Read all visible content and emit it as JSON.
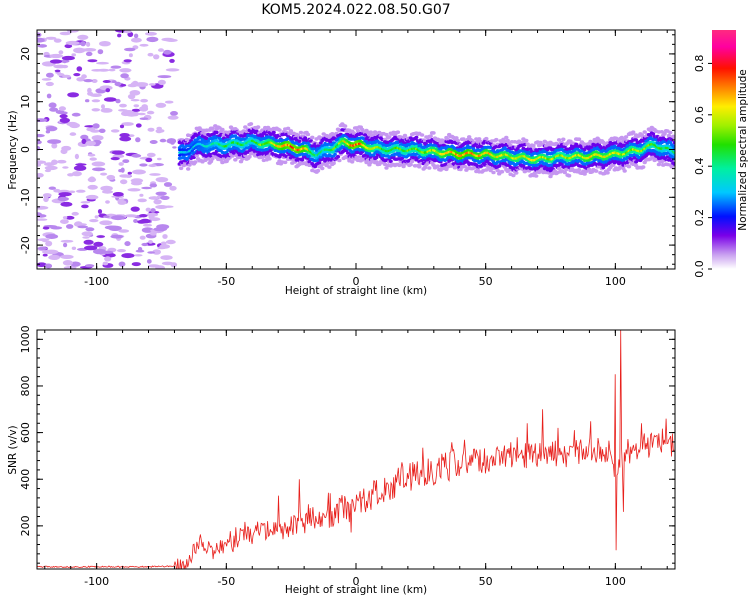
{
  "chart_data": [
    {
      "type": "heatmap",
      "title": "KOM5.2024.022.08.50.G07",
      "xlabel": "Height of straight line (km)",
      "ylabel": "Frequency (Hz)",
      "xlim": [
        -123,
        123
      ],
      "ylim": [
        -25,
        25
      ],
      "xticks": [
        -100,
        -50,
        0,
        50,
        100
      ],
      "yticks": [
        -20,
        -10,
        0,
        10,
        20
      ],
      "colorbar": {
        "label": "Normalized spectral amplitude",
        "range": [
          0,
          0.93
        ],
        "ticks": [
          "0.0",
          "0.2",
          "0.4",
          "0.6",
          "0.8"
        ],
        "colormap": "gist_ncar-like rainbow (white-purple-blue-cyan-green-yellow-red-magenta)"
      },
      "noise_region_x": [
        -123,
        -70
      ],
      "trace": {
        "x": [
          -68,
          -60,
          -50,
          -40,
          -30,
          -25,
          -20,
          -15,
          -10,
          -5,
          0,
          5,
          10,
          20,
          30,
          40,
          50,
          60,
          70,
          80,
          90,
          100,
          110,
          115,
          120,
          123
        ],
        "freq": [
          -1,
          1,
          1,
          1.5,
          1,
          0.5,
          0,
          -1,
          0,
          1.5,
          1,
          0.5,
          0,
          0,
          -0.5,
          -1,
          -1,
          -1.5,
          -2,
          -1.5,
          -1.5,
          -1,
          0,
          1,
          0,
          -0.5
        ],
        "peak_amplitude": [
          0.3,
          0.35,
          0.45,
          0.45,
          0.65,
          0.75,
          0.7,
          0.4,
          0.45,
          0.6,
          0.75,
          0.6,
          0.5,
          0.5,
          0.6,
          0.7,
          0.65,
          0.6,
          0.6,
          0.55,
          0.65,
          0.6,
          0.55,
          0.5,
          0.45,
          0.4
        ]
      }
    },
    {
      "type": "line",
      "title": "",
      "xlabel": "Height of straight line (km)",
      "ylabel": "SNR (v/v)",
      "xlim": [
        -123,
        123
      ],
      "ylim": [
        15,
        1040
      ],
      "xticks": [
        -100,
        -50,
        0,
        50,
        100
      ],
      "yticks": [
        200,
        400,
        600,
        800,
        1000
      ],
      "series": [
        {
          "color": "#e8201c",
          "x": [
            -123,
            -110,
            -100,
            -90,
            -80,
            -70,
            -65,
            -60,
            -55,
            -50,
            -45,
            -40,
            -35,
            -30,
            -25,
            -20,
            -15,
            -10,
            -5,
            0,
            5,
            10,
            15,
            20,
            25,
            30,
            35,
            40,
            45,
            50,
            55,
            60,
            65,
            70,
            75,
            80,
            85,
            90,
            95,
            98,
            100,
            102,
            105,
            110,
            115,
            120,
            123
          ],
          "y": [
            25,
            24,
            25,
            24,
            25,
            27,
            50,
            130,
            90,
            120,
            160,
            170,
            190,
            180,
            200,
            220,
            240,
            240,
            270,
            280,
            320,
            360,
            380,
            410,
            430,
            440,
            460,
            470,
            480,
            480,
            500,
            490,
            500,
            500,
            510,
            510,
            520,
            520,
            530,
            520,
            450,
            470,
            520,
            540,
            550,
            550,
            545
          ],
          "spikes": [
            {
              "x": -30,
              "y": 330
            },
            {
              "x": -22,
              "y": 400
            },
            {
              "x": -10,
              "y": 340
            },
            {
              "x": 62,
              "y": 580
            },
            {
              "x": 66,
              "y": 640
            },
            {
              "x": 72,
              "y": 700
            },
            {
              "x": 78,
              "y": 620
            },
            {
              "x": 100,
              "y": 850
            },
            {
              "x": 100.3,
              "y": 95
            },
            {
              "x": 102,
              "y": 1040
            },
            {
              "x": 103,
              "y": 260
            },
            {
              "x": 110,
              "y": 640
            }
          ]
        }
      ]
    }
  ]
}
